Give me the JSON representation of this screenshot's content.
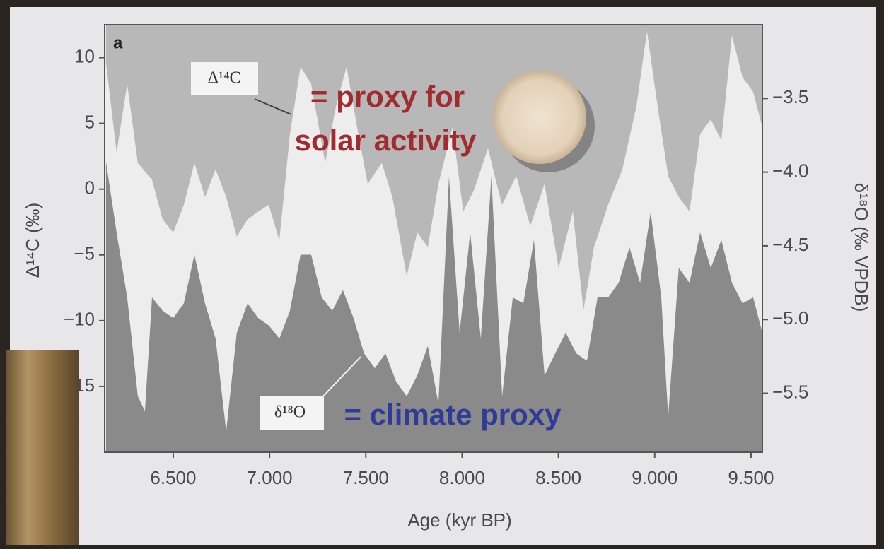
{
  "chart_data": {
    "type": "area",
    "panel_label": "a",
    "xlabel": "Age (kyr BP)",
    "ylabel": "Δ¹⁴C (‰)",
    "y2label": "δ¹⁸O (‰ VPDB)",
    "annotations": [
      "= proxy for",
      "solar activity",
      "= climate proxy"
    ],
    "xlim": [
      6144,
      9559
    ],
    "ylim": [
      -20,
      12.5
    ],
    "y2lim": [
      -5.9,
      -3.0
    ],
    "xticks": [
      {
        "value": 6500,
        "label": "6.500"
      },
      {
        "value": 7000,
        "label": "7.000"
      },
      {
        "value": 7500,
        "label": "7.500"
      },
      {
        "value": 8000,
        "label": "8.000"
      },
      {
        "value": 8500,
        "label": "8.500"
      },
      {
        "value": 9000,
        "label": "9.000"
      },
      {
        "value": 9500,
        "label": "9.500"
      }
    ],
    "yticks": [
      10,
      5,
      0,
      {
        "value": -5,
        "label": "−5"
      },
      {
        "value": -10,
        "label": "−10"
      },
      {
        "value": -15,
        "label": "−15"
      }
    ],
    "y2ticks": [
      {
        "value": -3.5,
        "label": "−3.5"
      },
      {
        "value": -4.0,
        "label": "−4.0"
      },
      {
        "value": -4.5,
        "label": "−4.5"
      },
      {
        "value": -5.0,
        "label": "−5.0"
      },
      {
        "value": -5.5,
        "label": "−5.5"
      }
    ],
    "series": [
      {
        "name": "Δ¹⁴C",
        "color": "#b8b8b8",
        "fill_from": "top",
        "x": [
          6151,
          6206,
          6261,
          6316,
          6390,
          6445,
          6500,
          6555,
          6610,
          6665,
          6720,
          6775,
          6830,
          6886,
          6941,
          6996,
          7051,
          7106,
          7161,
          7216,
          7289,
          7345,
          7400,
          7455,
          7510,
          7583,
          7638,
          7712,
          7767,
          7822,
          7877,
          7950,
          8006,
          8061,
          8134,
          8207,
          8281,
          8354,
          8428,
          8501,
          8575,
          8630,
          8685,
          8758,
          8832,
          8905,
          8960,
          9015,
          9070,
          9125,
          9181,
          9236,
          9291,
          9346,
          9401,
          9456,
          9511,
          9559
        ],
        "values": [
          9.6,
          2.8,
          8.0,
          2.0,
          0.7,
          -2.3,
          -3.3,
          -1.2,
          2.0,
          -0.6,
          1.5,
          -0.6,
          -3.6,
          -2.3,
          -1.7,
          -1.2,
          -3.9,
          4.2,
          9.3,
          8.0,
          2.0,
          6.3,
          9.3,
          4.7,
          0.4,
          2.0,
          -0.6,
          -6.6,
          -3.3,
          -4.4,
          0.4,
          4.7,
          -1.7,
          -0.1,
          3.1,
          -1.2,
          1.0,
          -2.8,
          0.4,
          -6.0,
          -1.7,
          -9.2,
          -4.4,
          -1.2,
          1.5,
          6.3,
          12.0,
          6.3,
          1.0,
          -0.6,
          -1.7,
          4.2,
          5.3,
          3.7,
          11.7,
          8.5,
          7.4,
          4.7
        ]
      },
      {
        "name": "δ¹⁸O",
        "color": "#8a8a8a",
        "fill_from": "bottom",
        "axis": "y2",
        "x": [
          6151,
          6206,
          6261,
          6316,
          6353,
          6390,
          6445,
          6500,
          6555,
          6610,
          6665,
          6720,
          6775,
          6830,
          6886,
          6941,
          6996,
          7051,
          7106,
          7161,
          7216,
          7271,
          7326,
          7381,
          7436,
          7491,
          7547,
          7602,
          7657,
          7712,
          7767,
          7822,
          7877,
          7932,
          7987,
          8042,
          8097,
          8152,
          8208,
          8263,
          8318,
          8373,
          8428,
          8483,
          8538,
          8593,
          8648,
          8703,
          8758,
          8813,
          8869,
          8924,
          8979,
          9034,
          9070,
          9125,
          9181,
          9236,
          9291,
          9346,
          9401,
          9456,
          9511,
          9559
        ],
        "values": [
          -3.93,
          -4.41,
          -4.85,
          -5.52,
          -5.62,
          -4.85,
          -4.94,
          -4.99,
          -4.89,
          -4.56,
          -4.89,
          -5.13,
          -5.76,
          -5.09,
          -4.89,
          -4.99,
          -5.04,
          -5.13,
          -4.94,
          -4.56,
          -4.56,
          -4.85,
          -4.94,
          -4.8,
          -4.99,
          -5.23,
          -5.33,
          -5.23,
          -5.42,
          -5.52,
          -5.38,
          -5.18,
          -5.57,
          -4.03,
          -5.09,
          -4.41,
          -5.13,
          -4.03,
          -5.52,
          -4.85,
          -4.89,
          -4.46,
          -5.38,
          -5.23,
          -5.09,
          -5.23,
          -5.28,
          -4.85,
          -4.85,
          -4.75,
          -4.51,
          -4.75,
          -4.27,
          -4.85,
          -5.66,
          -4.65,
          -4.75,
          -4.41,
          -4.65,
          -4.46,
          -4.75,
          -4.89,
          -4.85,
          -5.09
        ]
      }
    ]
  }
}
